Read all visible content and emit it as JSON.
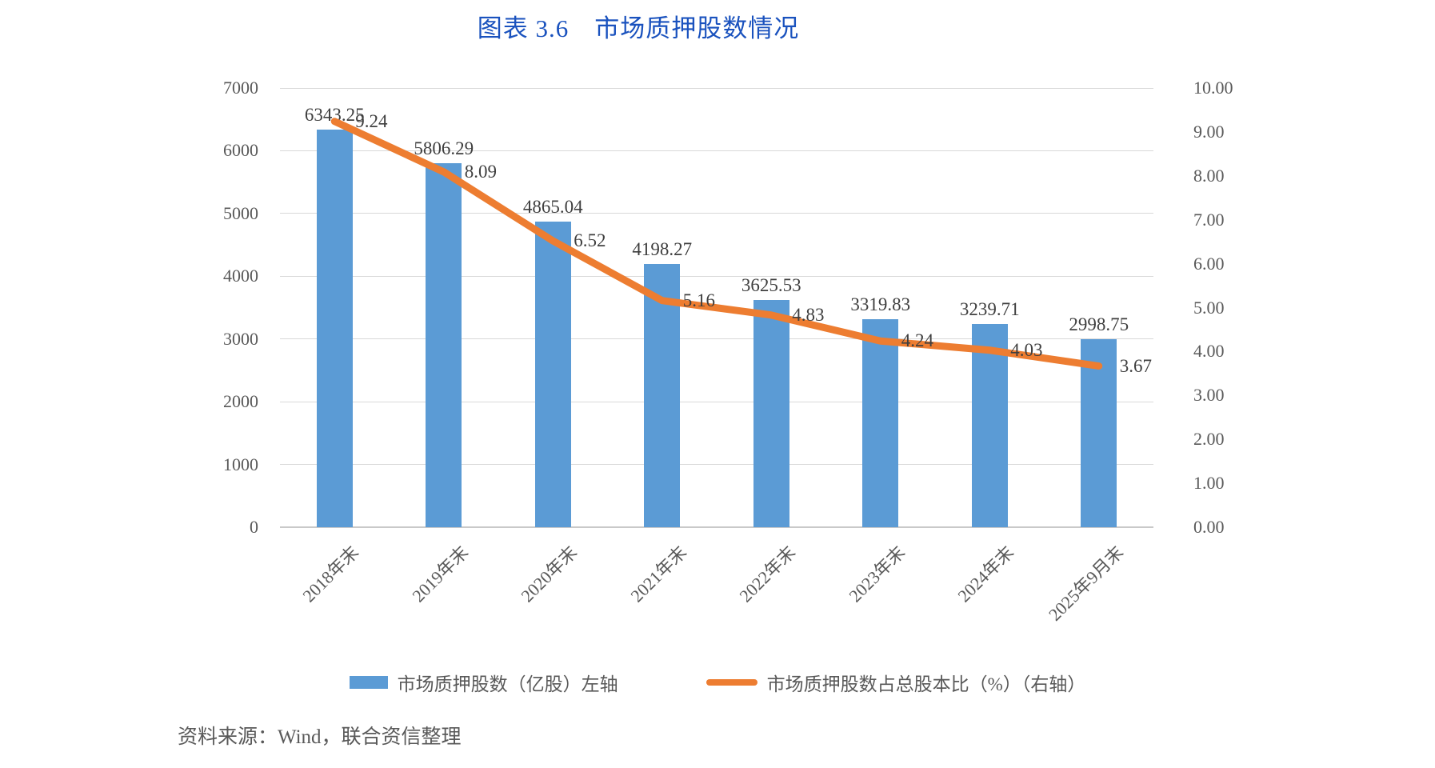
{
  "title": "图表 3.6　市场质押股数情况",
  "source_note": "资料来源：Wind，联合资信整理",
  "colors": {
    "bar": "#5B9BD5",
    "line": "#ED7D31",
    "title": "#1A52BE",
    "grid": "#D9D9D9",
    "axis_text": "#595959",
    "data_label": "#3F3F3F"
  },
  "legend": [
    {
      "label": "市场质押股数（亿股）左轴",
      "swatch": "bar"
    },
    {
      "label": "市场质押股数占总股本比（%）（右轴）",
      "swatch": "line"
    }
  ],
  "chart_data": {
    "type": "combo",
    "categories": [
      "2018年末",
      "2019年末",
      "2020年末",
      "2021年末",
      "2022年末",
      "2023年末",
      "2024年末",
      "2025年9月末"
    ],
    "series": [
      {
        "name": "市场质押股数（亿股）左轴",
        "type": "bar",
        "axis": "left",
        "values": [
          6343.25,
          5806.29,
          4865.04,
          4198.27,
          3625.53,
          3319.83,
          3239.71,
          2998.75
        ]
      },
      {
        "name": "市场质押股数占总股本比（%）（右轴）",
        "type": "line",
        "axis": "right",
        "values": [
          9.24,
          8.09,
          6.52,
          5.16,
          4.83,
          4.24,
          4.03,
          3.67
        ]
      }
    ],
    "left_axis": {
      "min": 0,
      "max": 7000,
      "step": 1000,
      "tick_labels": [
        "0",
        "1000",
        "2000",
        "3000",
        "4000",
        "5000",
        "6000",
        "7000"
      ]
    },
    "right_axis": {
      "min": 0,
      "max": 10,
      "step": 1,
      "tick_labels": [
        "0.00",
        "1.00",
        "2.00",
        "3.00",
        "4.00",
        "5.00",
        "6.00",
        "7.00",
        "8.00",
        "9.00",
        "10.00"
      ]
    },
    "grid": true,
    "legend_position": "bottom",
    "data_labels": true
  }
}
